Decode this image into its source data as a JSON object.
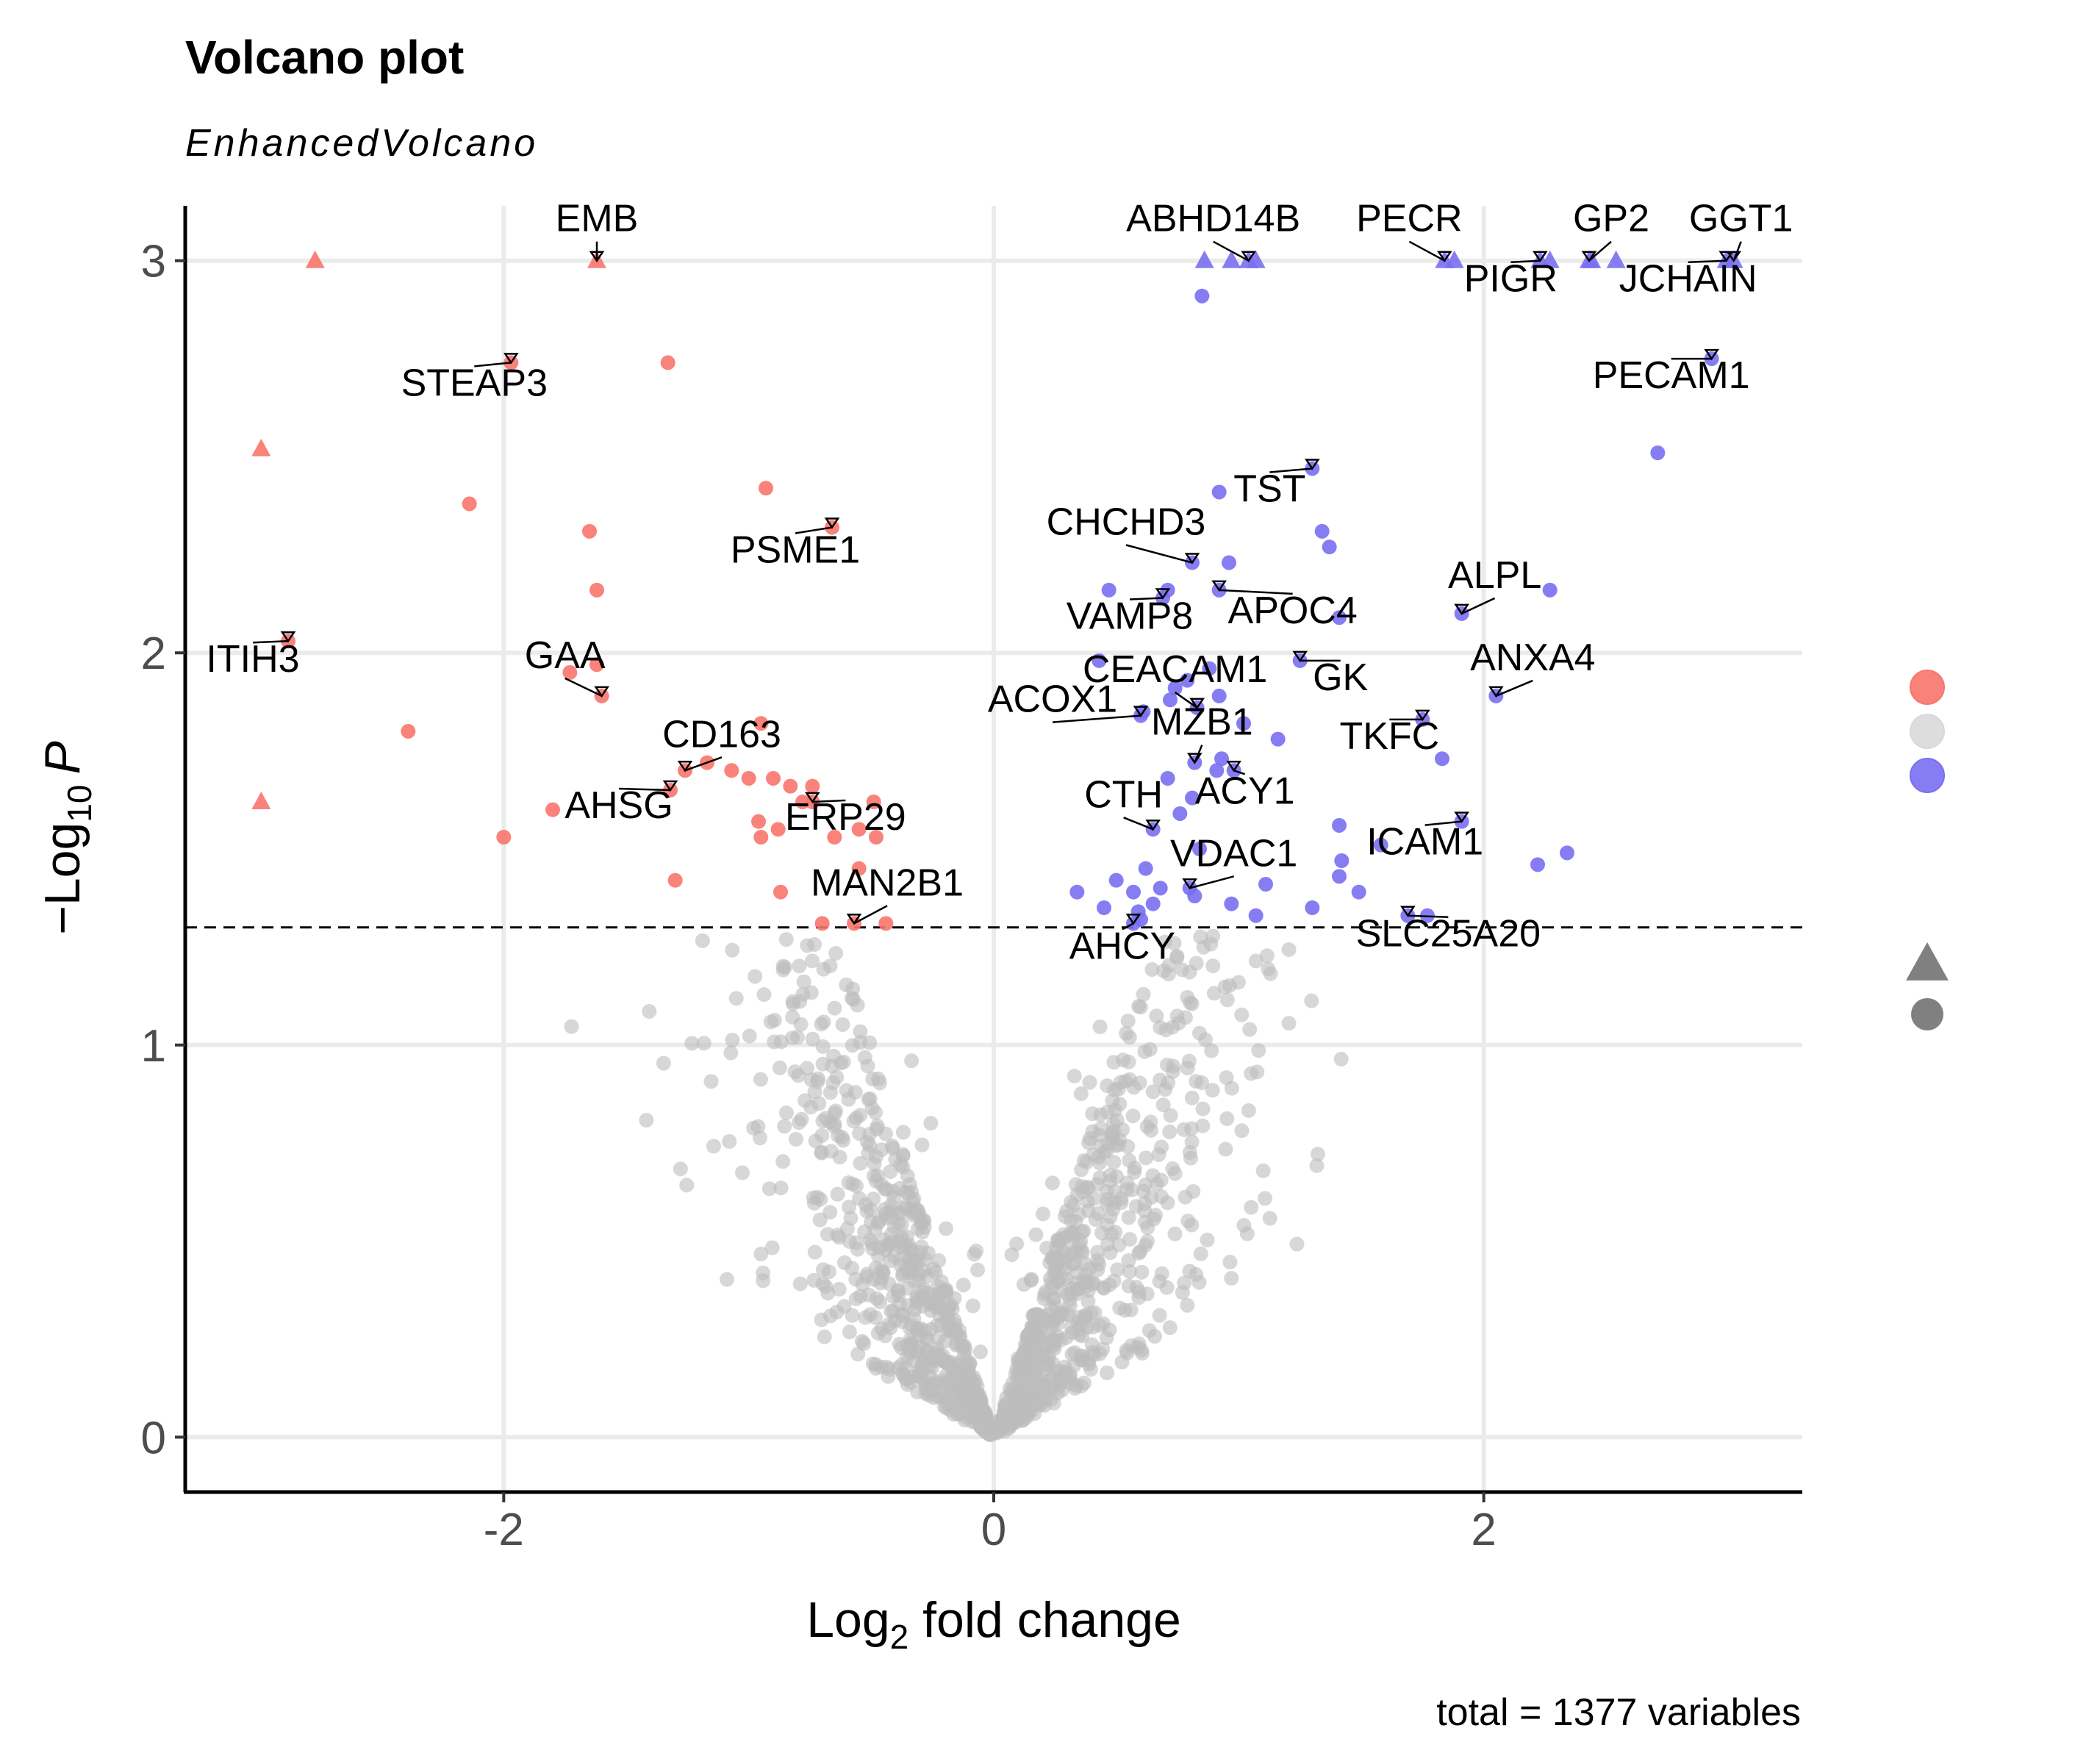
{
  "chart_data": {
    "type": "scatter",
    "title": "Volcano plot",
    "subtitle": "EnhancedVolcano",
    "xlabel": "Log2 fold change",
    "xlabel_parts": {
      "main": "Log",
      "sub": "2",
      "rest": " fold change"
    },
    "ylabel": "−Log10 P",
    "ylabel_parts": {
      "main": "−Log",
      "sub": "10",
      "rest": "P"
    },
    "caption": "total = 1377 variables",
    "xlim": [
      -3.3,
      3.3
    ],
    "ylim": [
      -0.14,
      3.14
    ],
    "x_ticks": [
      {
        "v": -2,
        "label": "-2"
      },
      {
        "v": 0,
        "label": "0"
      },
      {
        "v": 2,
        "label": "2"
      }
    ],
    "y_ticks": [
      {
        "v": 0,
        "label": "0"
      },
      {
        "v": 1,
        "label": "1"
      },
      {
        "v": 2,
        "label": "2"
      },
      {
        "v": 3,
        "label": "3"
      }
    ],
    "grid": true,
    "p_cutoff_line_y": 1.3,
    "legend": {
      "position": "right",
      "colour_keys": [
        "#f8766d",
        "#d9d9d9",
        "#7a6ff2"
      ],
      "shape_keys": [
        "triangle",
        "circle"
      ]
    },
    "colors": {
      "up": "#7a6ff2",
      "down": "#f8766d",
      "ns": "#bdbdbd"
    },
    "labelled_points": [
      {
        "label": "EMB",
        "x": -1.62,
        "y": 3.0,
        "shape": "triangle",
        "group": "down"
      },
      {
        "label": "STEAP3",
        "x": -1.97,
        "y": 2.74,
        "shape": "circle",
        "group": "down"
      },
      {
        "label": "PSME1",
        "x": -0.66,
        "y": 2.32,
        "shape": "circle",
        "group": "down"
      },
      {
        "label": "ITIH3",
        "x": -2.88,
        "y": 2.03,
        "shape": "circle",
        "group": "down"
      },
      {
        "label": "GAA",
        "x": -1.6,
        "y": 1.89,
        "shape": "circle",
        "group": "down"
      },
      {
        "label": "CD163",
        "x": -1.26,
        "y": 1.7,
        "shape": "circle",
        "group": "down"
      },
      {
        "label": "AHSG",
        "x": -1.32,
        "y": 1.65,
        "shape": "circle",
        "group": "down"
      },
      {
        "label": "ERP29",
        "x": -0.74,
        "y": 1.62,
        "shape": "circle",
        "group": "down"
      },
      {
        "label": "MAN2B1",
        "x": -0.57,
        "y": 1.31,
        "shape": "circle",
        "group": "down"
      },
      {
        "label": "ABHD14B",
        "x": 1.04,
        "y": 3.0,
        "shape": "triangle",
        "group": "up"
      },
      {
        "label": "PECR",
        "x": 1.84,
        "y": 3.0,
        "shape": "triangle",
        "group": "up"
      },
      {
        "label": "GP2",
        "x": 2.43,
        "y": 3.0,
        "shape": "triangle",
        "group": "up"
      },
      {
        "label": "GGT1",
        "x": 3.02,
        "y": 3.0,
        "shape": "triangle",
        "group": "up"
      },
      {
        "label": "PIGR",
        "x": 2.23,
        "y": 3.0,
        "shape": "triangle",
        "group": "up"
      },
      {
        "label": "JCHAIN",
        "x": 2.99,
        "y": 3.0,
        "shape": "triangle",
        "group": "up"
      },
      {
        "label": "PECAM1",
        "x": 2.93,
        "y": 2.75,
        "shape": "circle",
        "group": "up"
      },
      {
        "label": "TST",
        "x": 1.3,
        "y": 2.47,
        "shape": "circle",
        "group": "up"
      },
      {
        "label": "CHCHD3",
        "x": 0.81,
        "y": 2.23,
        "shape": "circle",
        "group": "up"
      },
      {
        "label": "VAMP8",
        "x": 0.69,
        "y": 2.14,
        "shape": "circle",
        "group": "up"
      },
      {
        "label": "APOC4",
        "x": 0.92,
        "y": 2.16,
        "shape": "circle",
        "group": "up"
      },
      {
        "label": "ALPL",
        "x": 1.91,
        "y": 2.1,
        "shape": "circle",
        "group": "up"
      },
      {
        "label": "GK",
        "x": 1.25,
        "y": 1.98,
        "shape": "circle",
        "group": "up"
      },
      {
        "label": "ANXA4",
        "x": 2.05,
        "y": 1.89,
        "shape": "circle",
        "group": "up"
      },
      {
        "label": "CEACAM1",
        "x": 0.83,
        "y": 1.86,
        "shape": "circle",
        "group": "up"
      },
      {
        "label": "ACOX1",
        "x": 0.6,
        "y": 1.84,
        "shape": "circle",
        "group": "up"
      },
      {
        "label": "MZB1",
        "x": 0.82,
        "y": 1.72,
        "shape": "circle",
        "group": "up"
      },
      {
        "label": "TKFC",
        "x": 1.75,
        "y": 1.83,
        "shape": "circle",
        "group": "up"
      },
      {
        "label": "ACY1",
        "x": 0.98,
        "y": 1.7,
        "shape": "circle",
        "group": "up"
      },
      {
        "label": "CTH",
        "x": 0.65,
        "y": 1.55,
        "shape": "circle",
        "group": "up"
      },
      {
        "label": "ICAM1",
        "x": 1.91,
        "y": 1.57,
        "shape": "circle",
        "group": "up"
      },
      {
        "label": "VDAC1",
        "x": 0.8,
        "y": 1.4,
        "shape": "circle",
        "group": "up"
      },
      {
        "label": "AHCY",
        "x": 0.57,
        "y": 1.31,
        "shape": "circle",
        "group": "up"
      },
      {
        "label": "SLC25A20",
        "x": 1.69,
        "y": 1.33,
        "shape": "circle",
        "group": "up"
      }
    ],
    "series": [
      {
        "group": "down",
        "points": [
          [
            -2.77,
            3.0,
            "triangle"
          ],
          [
            -2.99,
            2.52,
            "triangle"
          ],
          [
            -2.99,
            1.62,
            "triangle"
          ],
          [
            -1.33,
            2.74,
            "circle"
          ],
          [
            -2.14,
            2.38,
            "circle"
          ],
          [
            -1.65,
            2.31,
            "circle"
          ],
          [
            -0.93,
            2.42,
            "circle"
          ],
          [
            -1.62,
            2.16,
            "circle"
          ],
          [
            -2.39,
            1.8,
            "circle"
          ],
          [
            -1.8,
            1.6,
            "circle"
          ],
          [
            -2.0,
            1.53,
            "circle"
          ],
          [
            -1.3,
            1.42,
            "circle"
          ],
          [
            -0.9,
            1.68,
            "circle"
          ],
          [
            -0.95,
            1.82,
            "circle"
          ],
          [
            -1.07,
            1.7,
            "circle"
          ],
          [
            -1.0,
            1.68,
            "circle"
          ],
          [
            -0.83,
            1.66,
            "circle"
          ],
          [
            -0.74,
            1.66,
            "circle"
          ],
          [
            -0.96,
            1.57,
            "circle"
          ],
          [
            -0.88,
            1.55,
            "circle"
          ],
          [
            -0.65,
            1.53,
            "circle"
          ],
          [
            -0.55,
            1.55,
            "circle"
          ],
          [
            -0.49,
            1.62,
            "circle"
          ],
          [
            -0.48,
            1.53,
            "circle"
          ],
          [
            -0.55,
            1.45,
            "circle"
          ],
          [
            -0.87,
            1.39,
            "circle"
          ],
          [
            -0.44,
            1.31,
            "circle"
          ],
          [
            -0.7,
            1.31,
            "circle"
          ],
          [
            -1.73,
            1.95,
            "circle"
          ],
          [
            -1.62,
            1.97,
            "circle"
          ],
          [
            -1.17,
            1.72,
            "circle"
          ],
          [
            -0.95,
            1.53,
            "circle"
          ],
          [
            -0.78,
            1.62,
            "circle"
          ]
        ]
      },
      {
        "group": "up",
        "points": [
          [
            0.86,
            3.0,
            "triangle"
          ],
          [
            0.97,
            3.0,
            "triangle"
          ],
          [
            1.07,
            3.0,
            "triangle"
          ],
          [
            1.88,
            3.0,
            "triangle"
          ],
          [
            2.27,
            3.0,
            "triangle"
          ],
          [
            2.44,
            3.0,
            "triangle"
          ],
          [
            2.54,
            3.0,
            "triangle"
          ],
          [
            0.85,
            2.91,
            "circle"
          ],
          [
            2.71,
            2.51,
            "circle"
          ],
          [
            0.92,
            2.41,
            "circle"
          ],
          [
            1.34,
            2.31,
            "circle"
          ],
          [
            1.37,
            2.27,
            "circle"
          ],
          [
            0.96,
            2.23,
            "circle"
          ],
          [
            0.47,
            2.16,
            "circle"
          ],
          [
            0.71,
            2.16,
            "circle"
          ],
          [
            2.27,
            2.16,
            "circle"
          ],
          [
            1.41,
            2.09,
            "circle"
          ],
          [
            0.43,
            1.98,
            "circle"
          ],
          [
            0.88,
            1.96,
            "circle"
          ],
          [
            0.74,
            1.91,
            "circle"
          ],
          [
            0.79,
            1.93,
            "circle"
          ],
          [
            0.92,
            1.89,
            "circle"
          ],
          [
            0.61,
            1.85,
            "circle"
          ],
          [
            0.72,
            1.88,
            "circle"
          ],
          [
            1.02,
            1.82,
            "circle"
          ],
          [
            1.16,
            1.78,
            "circle"
          ],
          [
            0.93,
            1.73,
            "circle"
          ],
          [
            0.91,
            1.7,
            "circle"
          ],
          [
            0.71,
            1.68,
            "circle"
          ],
          [
            0.81,
            1.63,
            "circle"
          ],
          [
            0.76,
            1.59,
            "circle"
          ],
          [
            1.41,
            1.56,
            "circle"
          ],
          [
            1.83,
            1.73,
            "circle"
          ],
          [
            1.58,
            1.51,
            "circle"
          ],
          [
            2.34,
            1.49,
            "circle"
          ],
          [
            2.22,
            1.46,
            "circle"
          ],
          [
            1.42,
            1.47,
            "circle"
          ],
          [
            1.41,
            1.43,
            "circle"
          ],
          [
            0.5,
            1.42,
            "circle"
          ],
          [
            0.62,
            1.45,
            "circle"
          ],
          [
            0.68,
            1.4,
            "circle"
          ],
          [
            0.34,
            1.39,
            "circle"
          ],
          [
            0.57,
            1.39,
            "circle"
          ],
          [
            0.82,
            1.38,
            "circle"
          ],
          [
            1.11,
            1.41,
            "circle"
          ],
          [
            1.49,
            1.39,
            "circle"
          ],
          [
            0.97,
            1.36,
            "circle"
          ],
          [
            1.07,
            1.33,
            "circle"
          ],
          [
            1.3,
            1.35,
            "circle"
          ],
          [
            0.45,
            1.35,
            "circle"
          ],
          [
            0.59,
            1.34,
            "circle"
          ],
          [
            1.77,
            1.33,
            "circle"
          ],
          [
            0.6,
            1.32,
            "circle"
          ],
          [
            0.84,
            1.5,
            "circle"
          ],
          [
            0.65,
            1.36,
            "circle"
          ]
        ]
      }
    ]
  }
}
